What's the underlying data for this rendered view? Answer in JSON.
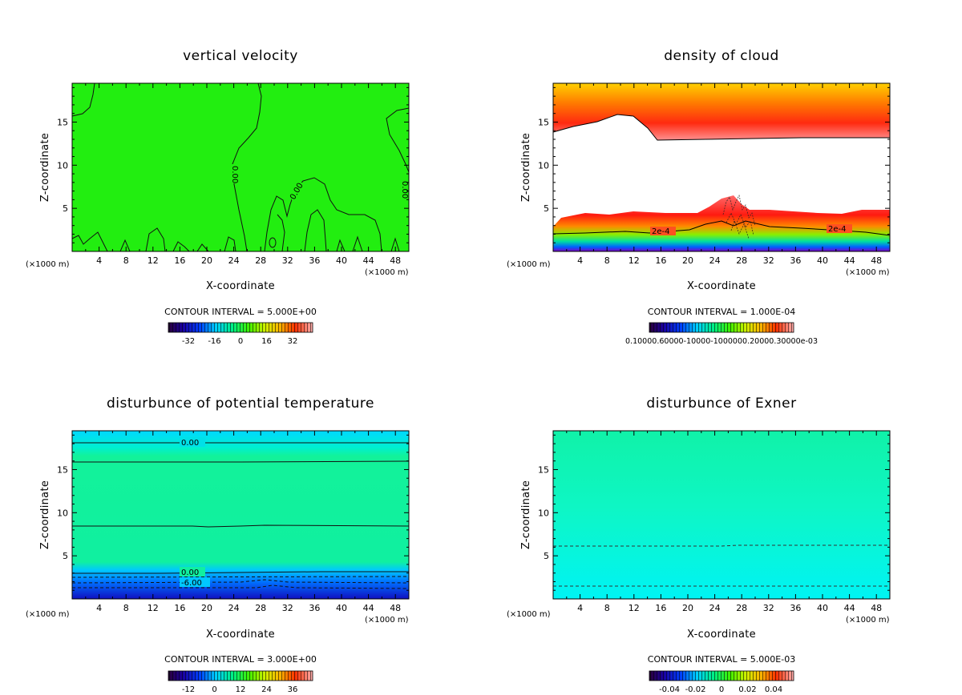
{
  "chart_data": [
    {
      "type": "heatmap",
      "title": "vertical velocity",
      "xlabel": "X-coordinate",
      "ylabel": "Z-coordinate",
      "x_unit": "(×1000 m)",
      "xlim": [
        0,
        50
      ],
      "ylim": [
        0,
        19.5
      ],
      "xticks": [
        "4",
        "8",
        "12",
        "16",
        "20",
        "24",
        "28",
        "32",
        "36",
        "40",
        "44",
        "48"
      ],
      "yticks": [
        "5",
        "10",
        "15"
      ],
      "contour_interval": "CONTOUR INTERVAL = 5.000E+00",
      "colorbar_labels": [
        "-32",
        "-16",
        "0",
        "16",
        "32"
      ],
      "contour_labels": [
        "0.00",
        "0.00",
        "0.00"
      ],
      "fill_color": "#22ee10"
    },
    {
      "type": "heatmap",
      "title": "density of cloud",
      "xlabel": "X-coordinate",
      "ylabel": "Z-coordinate",
      "x_unit": "(×1000 m)",
      "xlim": [
        0,
        50
      ],
      "ylim": [
        0,
        19.5
      ],
      "xticks": [
        "4",
        "8",
        "12",
        "16",
        "20",
        "24",
        "28",
        "32",
        "36",
        "40",
        "44",
        "48"
      ],
      "yticks": [
        "5",
        "10",
        "15"
      ],
      "contour_interval": "CONTOUR INTERVAL = 1.000E-04",
      "colorbar_text": "0.10000.60000-10000-1000000.20000.30000e-03",
      "contour_labels": [
        "2e-4",
        "2e-4"
      ],
      "fill_color": "#ff2a1a"
    },
    {
      "type": "heatmap",
      "title": "disturbunce of potential temperature",
      "xlabel": "X-coordinate",
      "ylabel": "Z-coordinate",
      "x_unit": "(×1000 m)",
      "xlim": [
        0,
        50
      ],
      "ylim": [
        0,
        19.5
      ],
      "xticks": [
        "4",
        "8",
        "12",
        "16",
        "20",
        "24",
        "28",
        "32",
        "36",
        "40",
        "44",
        "48"
      ],
      "yticks": [
        "5",
        "10",
        "15"
      ],
      "contour_interval": "CONTOUR INTERVAL = 3.000E+00",
      "colorbar_labels": [
        "-12",
        "0",
        "12",
        "24",
        "36"
      ],
      "contour_labels": [
        "0.00",
        "0.00",
        "-6.00"
      ],
      "fill_color": "#12f29a"
    },
    {
      "type": "heatmap",
      "title": "disturbunce of Exner",
      "xlabel": "X-coordinate",
      "ylabel": "Z-coordinate",
      "x_unit": "(×1000 m)",
      "xlim": [
        0,
        50
      ],
      "ylim": [
        0,
        19.5
      ],
      "xticks": [
        "4",
        "8",
        "12",
        "16",
        "20",
        "24",
        "28",
        "32",
        "36",
        "40",
        "44",
        "48"
      ],
      "yticks": [
        "5",
        "10",
        "15"
      ],
      "contour_interval": "CONTOUR INTERVAL = 5.000E-03",
      "colorbar_labels": [
        "-0.04",
        "-0.02",
        "0",
        "0.02",
        "0.04"
      ],
      "contour_labels": [],
      "fill_color": "#0ef6c4"
    }
  ]
}
